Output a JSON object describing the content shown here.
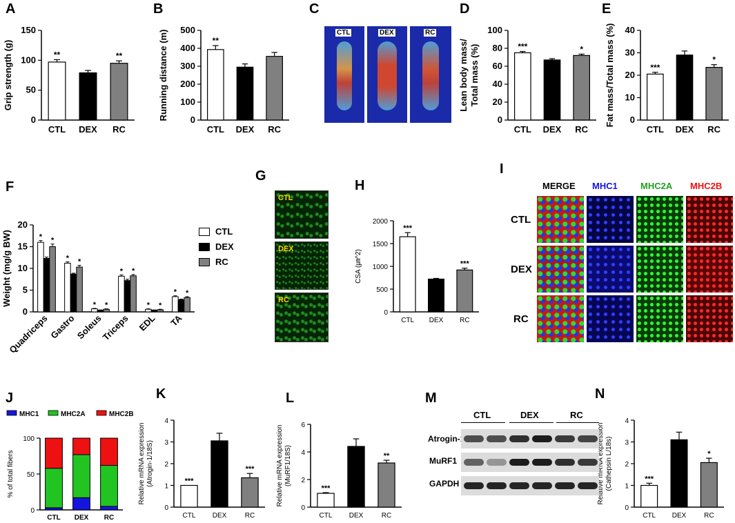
{
  "panels": {
    "A": "A",
    "B": "B",
    "C": "C",
    "D": "D",
    "E": "E",
    "F": "F",
    "G": "G",
    "H": "H",
    "I": "I",
    "J": "J",
    "K": "K",
    "L": "L",
    "M": "M",
    "N": "N"
  },
  "groups": [
    "CTL",
    "DEX",
    "RC"
  ],
  "colors": {
    "CTL": "#ffffff",
    "DEX": "#000000",
    "RC": "#808080",
    "MHC1": "#1515e0",
    "MHC2A": "#22c422",
    "MHC2B": "#ee1111"
  },
  "imaging": {
    "labels": [
      "CTL",
      "DEX",
      "RC"
    ]
  },
  "fiber_sections": {
    "labels": [
      "CTL",
      "DEX",
      "RC"
    ]
  },
  "staining": {
    "columns": [
      "MERGE",
      "MHC1",
      "MHC2A",
      "MHC2B"
    ],
    "rows": [
      "CTL",
      "DEX",
      "RC"
    ]
  },
  "western": {
    "groups": [
      "CTL",
      "DEX",
      "RC"
    ],
    "bands": [
      "Atrogin-1",
      "MuRF1",
      "GAPDH"
    ]
  },
  "chart_data": [
    {
      "id": "A",
      "type": "bar",
      "categories": [
        "CTL",
        "DEX",
        "RC"
      ],
      "values": [
        97,
        79,
        95
      ],
      "errors": [
        4,
        4,
        4
      ],
      "sig": [
        "**",
        "",
        "**"
      ],
      "ylabel": "Grip strength (g)",
      "ylim": [
        0,
        150
      ],
      "yticks": [
        0,
        50,
        100,
        150
      ]
    },
    {
      "id": "B",
      "type": "bar",
      "categories": [
        "CTL",
        "DEX",
        "RC"
      ],
      "values": [
        393,
        295,
        355
      ],
      "errors": [
        22,
        18,
        22
      ],
      "sig": [
        "**",
        "",
        ""
      ],
      "ylabel": "Running distance (m)",
      "ylim": [
        0,
        500
      ],
      "yticks": [
        0,
        100,
        200,
        300,
        400,
        500
      ]
    },
    {
      "id": "D",
      "type": "bar",
      "categories": [
        "CTL",
        "DEX",
        "RC"
      ],
      "values": [
        75,
        67,
        72
      ],
      "errors": [
        1.5,
        1.5,
        1.5
      ],
      "sig": [
        "***",
        "",
        "*"
      ],
      "ylabel": "Lean body mass/\nTotal mass (%)",
      "ylim": [
        0,
        100
      ],
      "yticks": [
        0,
        20,
        40,
        60,
        80,
        100
      ]
    },
    {
      "id": "E",
      "type": "bar",
      "categories": [
        "CTL",
        "DEX",
        "RC"
      ],
      "values": [
        20.5,
        29,
        23.5
      ],
      "errors": [
        0.8,
        1.8,
        1.2
      ],
      "sig": [
        "***",
        "",
        "*"
      ],
      "ylabel": "Fat mass/Total mass (%)",
      "ylim": [
        0,
        40
      ],
      "yticks": [
        0,
        10,
        20,
        30,
        40
      ]
    },
    {
      "id": "F",
      "type": "bar",
      "categories": [
        "Quadriceps",
        "Gastro",
        "Soleus",
        "Triceps",
        "EDL",
        "TA"
      ],
      "series": [
        {
          "name": "CTL",
          "values": [
            16,
            11.2,
            0.7,
            8.2,
            0.6,
            3.5
          ],
          "errors": [
            0.4,
            0.3,
            0.1,
            0.3,
            0.1,
            0.2
          ]
        },
        {
          "name": "DEX",
          "values": [
            12.3,
            8.7,
            0.4,
            7.2,
            0.4,
            2.8
          ],
          "errors": [
            0.3,
            0.2,
            0.05,
            0.3,
            0.05,
            0.15
          ]
        },
        {
          "name": "RC",
          "values": [
            15,
            10.3,
            0.6,
            8.3,
            0.5,
            3.3
          ],
          "errors": [
            0.6,
            0.4,
            0.1,
            0.3,
            0.1,
            0.2
          ]
        }
      ],
      "sig": {
        "CTL": [
          "*",
          "*",
          "*",
          "*",
          "*",
          "*"
        ],
        "RC": [
          "*",
          "*",
          "*",
          "*",
          "*",
          "*"
        ]
      },
      "ylabel": "Weight (mg/g BW)",
      "ylim": [
        0,
        20
      ],
      "yticks": [
        0,
        5,
        10,
        15,
        20
      ],
      "legend": [
        "CTL",
        "DEX",
        "RC"
      ]
    },
    {
      "id": "H",
      "type": "bar",
      "categories": [
        "CTL",
        "DEX",
        "RC"
      ],
      "values": [
        1650,
        720,
        920
      ],
      "errors": [
        90,
        15,
        40
      ],
      "sig": [
        "***",
        "",
        "***"
      ],
      "ylabel": "CSA (㎛^2)",
      "ylim": [
        0,
        2000
      ],
      "yticks": [
        0,
        500,
        1000,
        1500,
        2000
      ]
    },
    {
      "id": "J",
      "type": "bar",
      "stacked": true,
      "categories": [
        "CTL",
        "DEX",
        "RC"
      ],
      "series": [
        {
          "name": "MHC1",
          "values": [
            3,
            17,
            5
          ]
        },
        {
          "name": "MHC2A",
          "values": [
            55,
            60,
            57
          ]
        },
        {
          "name": "MHC2B",
          "values": [
            42,
            23,
            38
          ]
        }
      ],
      "ylabel": "% of total fibers",
      "ylim": [
        0,
        100
      ],
      "yticks": [
        0,
        50,
        100
      ],
      "legend": [
        "MHC1",
        "MHC2A",
        "MHC2B"
      ]
    },
    {
      "id": "K",
      "type": "bar",
      "categories": [
        "CTL",
        "DEX",
        "RC"
      ],
      "values": [
        1,
        3.05,
        1.35
      ],
      "errors": [
        0,
        0.35,
        0.2
      ],
      "sig": [
        "***",
        "",
        "***"
      ],
      "ylabel": "Relative mRNA expression\n(Atrogin-1/18S)",
      "ylim": [
        0,
        4
      ],
      "yticks": [
        0,
        1,
        2,
        3,
        4
      ]
    },
    {
      "id": "L",
      "type": "bar",
      "categories": [
        "CTL",
        "DEX",
        "RC"
      ],
      "values": [
        1,
        4.4,
        3.2
      ],
      "errors": [
        0.05,
        0.55,
        0.2
      ],
      "sig": [
        "***",
        "",
        "**"
      ],
      "ylabel": "Relative mRNA expression\n(MuRF1/18S)",
      "ylim": [
        0,
        6
      ],
      "yticks": [
        0,
        2,
        4,
        6
      ]
    },
    {
      "id": "N",
      "type": "bar",
      "categories": [
        "CTL",
        "DEX",
        "RC"
      ],
      "values": [
        1,
        3.1,
        2.05
      ],
      "errors": [
        0.1,
        0.35,
        0.2
      ],
      "sig": [
        "***",
        "",
        "*"
      ],
      "ylabel": "Relative mRNA expression\n(Cathepsin L/18s)",
      "ylim": [
        0,
        4
      ],
      "yticks": [
        0,
        1,
        2,
        3,
        4
      ]
    }
  ]
}
